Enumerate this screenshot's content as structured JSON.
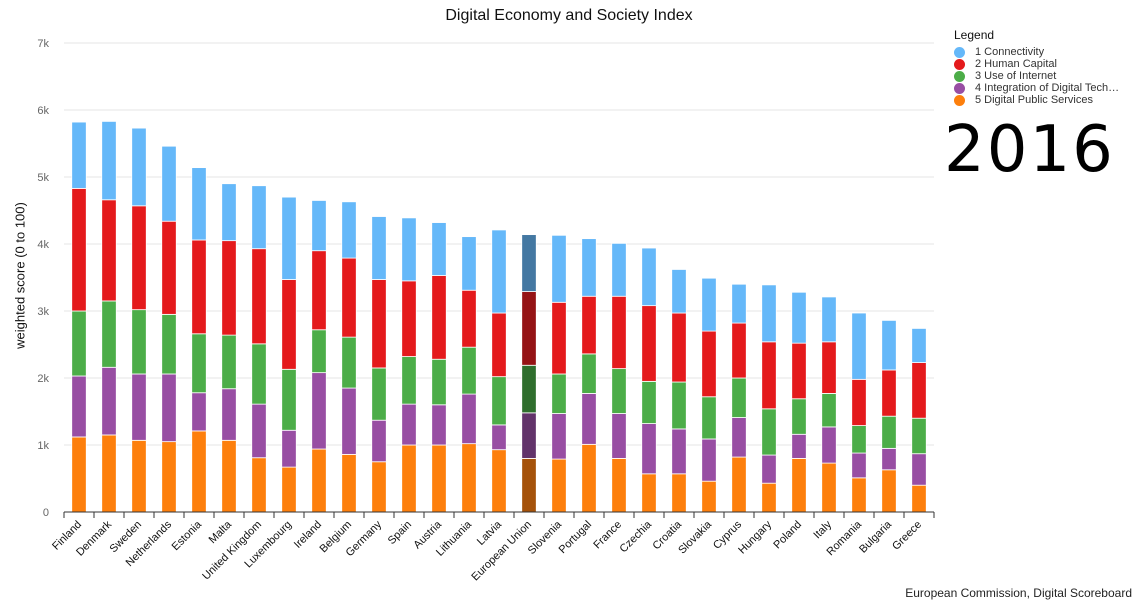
{
  "chart_data": {
    "type": "bar",
    "stacked": true,
    "title": "Digital Economy and Society Index",
    "ylabel": "weighted score (0 to 100)",
    "xlabel": "",
    "ylim": [
      0,
      7000
    ],
    "yticks": [
      0,
      1000,
      2000,
      3000,
      4000,
      5000,
      6000,
      7000
    ],
    "ytick_labels": [
      "0",
      "1k",
      "2k",
      "3k",
      "4k",
      "5k",
      "6k",
      "7k"
    ],
    "grid": true,
    "legend_position": "top-right",
    "categories": [
      "Finland",
      "Denmark",
      "Sweden",
      "Netherlands",
      "Estonia",
      "Malta",
      "United Kingdom",
      "Luxembourg",
      "Ireland",
      "Belgium",
      "Germany",
      "Spain",
      "Austria",
      "Lithuania",
      "Latvia",
      "European Union",
      "Slovenia",
      "Portugal",
      "France",
      "Czechia",
      "Croatia",
      "Slovakia",
      "Cyprus",
      "Hungary",
      "Poland",
      "Italy",
      "Romania",
      "Bulgaria",
      "Greece"
    ],
    "highlight_category": "European Union",
    "series": [
      {
        "name": "5 Digital Public Services",
        "color": "#fd7f0c",
        "highlight_color": "#a5520a",
        "values": [
          1120,
          1150,
          1070,
          1050,
          1210,
          1070,
          810,
          670,
          940,
          860,
          750,
          1000,
          1000,
          1020,
          930,
          800,
          790,
          1010,
          800,
          570,
          570,
          460,
          820,
          430,
          800,
          730,
          510,
          630,
          400
        ]
      },
      {
        "name": "4 Integration of Digital Tech…",
        "color": "#984ea3",
        "highlight_color": "#62336a",
        "values": [
          910,
          1010,
          990,
          1010,
          570,
          770,
          800,
          550,
          1140,
          990,
          620,
          610,
          600,
          740,
          370,
          680,
          680,
          760,
          670,
          750,
          670,
          630,
          590,
          420,
          360,
          540,
          370,
          320,
          470
        ]
      },
      {
        "name": "3 Use of Internet",
        "color": "#4cad48",
        "highlight_color": "#2f6e2d",
        "values": [
          970,
          990,
          960,
          890,
          880,
          800,
          900,
          910,
          640,
          760,
          780,
          710,
          680,
          700,
          720,
          710,
          590,
          590,
          670,
          630,
          700,
          630,
          590,
          690,
          530,
          500,
          410,
          480,
          530
        ]
      },
      {
        "name": "2 Human Capital",
        "color": "#e41a1c",
        "highlight_color": "#951315",
        "values": [
          1830,
          1510,
          1550,
          1390,
          1400,
          1410,
          1420,
          1340,
          1180,
          1180,
          1320,
          1130,
          1250,
          850,
          950,
          1100,
          1070,
          860,
          1080,
          1130,
          1030,
          980,
          820,
          1000,
          830,
          770,
          690,
          690,
          830
        ]
      },
      {
        "name": "1 Connectivity",
        "color": "#65b8f9",
        "highlight_color": "#4478a2",
        "values": [
          990,
          1170,
          1160,
          1120,
          1080,
          850,
          940,
          1230,
          750,
          840,
          940,
          940,
          790,
          800,
          1240,
          850,
          1000,
          860,
          790,
          860,
          650,
          790,
          580,
          850,
          760,
          670,
          990,
          740,
          510
        ]
      }
    ]
  },
  "legend": {
    "title": "Legend",
    "items": [
      {
        "label": "1 Connectivity",
        "color": "#65b8f9"
      },
      {
        "label": "2 Human Capital",
        "color": "#e41a1c"
      },
      {
        "label": "3 Use of Internet",
        "color": "#4cad48"
      },
      {
        "label": "4 Integration of Digital Tech…",
        "color": "#984ea3"
      },
      {
        "label": "5 Digital Public Services",
        "color": "#fd7f0c"
      }
    ]
  },
  "year_label": "2016",
  "source": "European Commission, Digital Scoreboard"
}
